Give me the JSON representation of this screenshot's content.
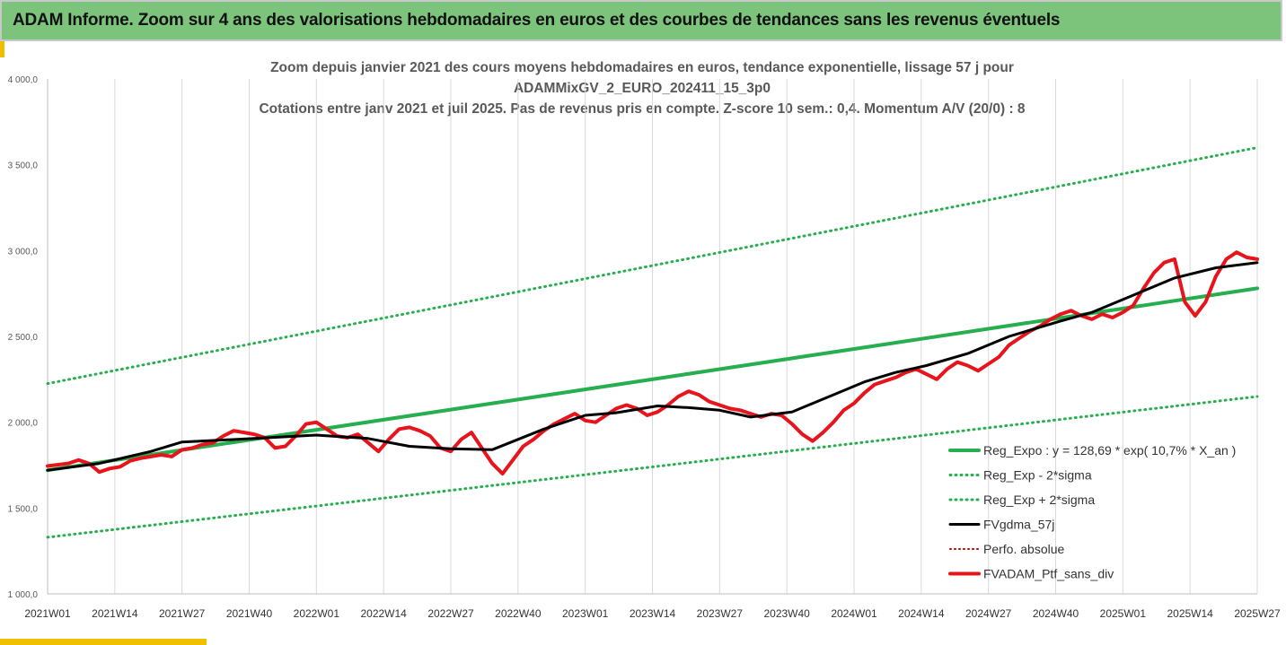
{
  "banner": {
    "title": "ADAM Informe. Zoom sur 4 ans des valorisations hebdomadaires en euros et des courbes de tendances sans les revenus éventuels"
  },
  "chart_title_lines": [
    "Zoom depuis janvier 2021 des cours moyens hebdomadaires  en euros, tendance exponentielle, lissage 57 j pour",
    "ADAMMixGV_2_EURO_202411_15_3p0",
    "Cotations entre janv 2021 et juil 2025. Pas de revenus pris en compte. Z-score 10 sem.: 0,4. Momentum A/V (20/0) : 8"
  ],
  "chart_data": {
    "type": "line",
    "ylim": [
      1000,
      4000
    ],
    "yticks": [
      "1 000,0",
      "1 500,0",
      "2 000,0",
      "2 500,0",
      "3 000,0",
      "3 500,0",
      "4 000,0"
    ],
    "xticks": [
      "2021W01",
      "2021W14",
      "2021W27",
      "2021W40",
      "2022W01",
      "2022W14",
      "2022W27",
      "2022W40",
      "2023W01",
      "2023W14",
      "2023W27",
      "2023W40",
      "2024W01",
      "2024W14",
      "2024W27",
      "2024W40",
      "2025W01",
      "2025W14",
      "2025W27"
    ],
    "grid": "vertical",
    "legend_position": "right",
    "series": [
      {
        "name": "Reg_Expo : y = 128,69 * exp( 10,7% *  X_an )",
        "style": "solid",
        "color": "#27ae4f",
        "width": 4,
        "x": [
          0,
          234
        ],
        "y": [
          1720,
          2780
        ]
      },
      {
        "name": "Reg_Exp - 2*sigma",
        "style": "dotted",
        "color": "#27ae4f",
        "width": 3,
        "x": [
          0,
          234
        ],
        "y": [
          1330,
          2150
        ]
      },
      {
        "name": "Reg_Exp + 2*sigma",
        "style": "dotted",
        "color": "#27ae4f",
        "width": 3,
        "x": [
          0,
          234
        ],
        "y": [
          2225,
          3600
        ]
      },
      {
        "name": "FVgdma_57j",
        "style": "solid",
        "color": "#000000",
        "width": 3,
        "x": [
          0,
          10,
          20,
          26,
          40,
          52,
          62,
          70,
          78,
          86,
          96,
          104,
          110,
          118,
          124,
          130,
          136,
          144,
          152,
          158,
          164,
          170,
          178,
          186,
          196,
          202,
          210,
          218,
          226,
          234
        ],
        "y": [
          1720,
          1760,
          1830,
          1885,
          1905,
          1925,
          1905,
          1860,
          1845,
          1840,
          1960,
          2040,
          2055,
          2095,
          2085,
          2070,
          2030,
          2060,
          2160,
          2235,
          2290,
          2330,
          2400,
          2500,
          2590,
          2640,
          2740,
          2840,
          2900,
          2930
        ]
      },
      {
        "name": "Perfo. absolue",
        "style": "dotted",
        "color": "#c00000",
        "width": 2,
        "x": [],
        "y": []
      },
      {
        "name": "FVADAM_Ptf_sans_div",
        "style": "solid",
        "color": "#e8141b",
        "width": 4,
        "x": [
          0,
          4,
          6,
          8,
          10,
          12,
          14,
          16,
          18,
          20,
          22,
          24,
          26,
          28,
          30,
          32,
          34,
          36,
          38,
          40,
          42,
          44,
          46,
          48,
          50,
          52,
          54,
          56,
          58,
          60,
          62,
          64,
          66,
          68,
          70,
          72,
          74,
          76,
          78,
          80,
          82,
          84,
          86,
          88,
          90,
          92,
          94,
          96,
          98,
          100,
          102,
          104,
          106,
          108,
          110,
          112,
          114,
          116,
          118,
          120,
          122,
          124,
          126,
          128,
          130,
          132,
          134,
          136,
          138,
          140,
          142,
          144,
          146,
          148,
          150,
          152,
          154,
          156,
          158,
          160,
          162,
          164,
          166,
          168,
          170,
          172,
          174,
          176,
          178,
          180,
          182,
          184,
          186,
          188,
          190,
          192,
          194,
          196,
          198,
          200,
          202,
          204,
          206,
          208,
          210,
          212,
          214,
          216,
          218,
          220,
          222,
          224,
          226,
          228,
          230,
          232,
          234
        ],
        "y": [
          1745,
          1760,
          1780,
          1760,
          1710,
          1730,
          1740,
          1775,
          1790,
          1800,
          1810,
          1800,
          1840,
          1850,
          1870,
          1880,
          1920,
          1950,
          1940,
          1930,
          1910,
          1850,
          1860,
          1920,
          1990,
          2000,
          1960,
          1920,
          1910,
          1930,
          1880,
          1830,
          1900,
          1960,
          1970,
          1950,
          1920,
          1850,
          1830,
          1900,
          1940,
          1850,
          1760,
          1700,
          1780,
          1860,
          1900,
          1950,
          1990,
          2020,
          2050,
          2010,
          2000,
          2040,
          2080,
          2100,
          2080,
          2040,
          2060,
          2100,
          2150,
          2180,
          2160,
          2120,
          2100,
          2080,
          2070,
          2050,
          2030,
          2050,
          2040,
          1990,
          1930,
          1890,
          1940,
          2000,
          2070,
          2110,
          2170,
          2220,
          2240,
          2260,
          2290,
          2310,
          2280,
          2250,
          2310,
          2350,
          2330,
          2300,
          2340,
          2380,
          2450,
          2490,
          2530,
          2560,
          2600,
          2630,
          2650,
          2620,
          2600,
          2630,
          2610,
          2640,
          2680,
          2780,
          2870,
          2930,
          2950,
          2700,
          2620,
          2700,
          2850,
          2950,
          2990,
          2960,
          2950
        ]
      }
    ]
  }
}
